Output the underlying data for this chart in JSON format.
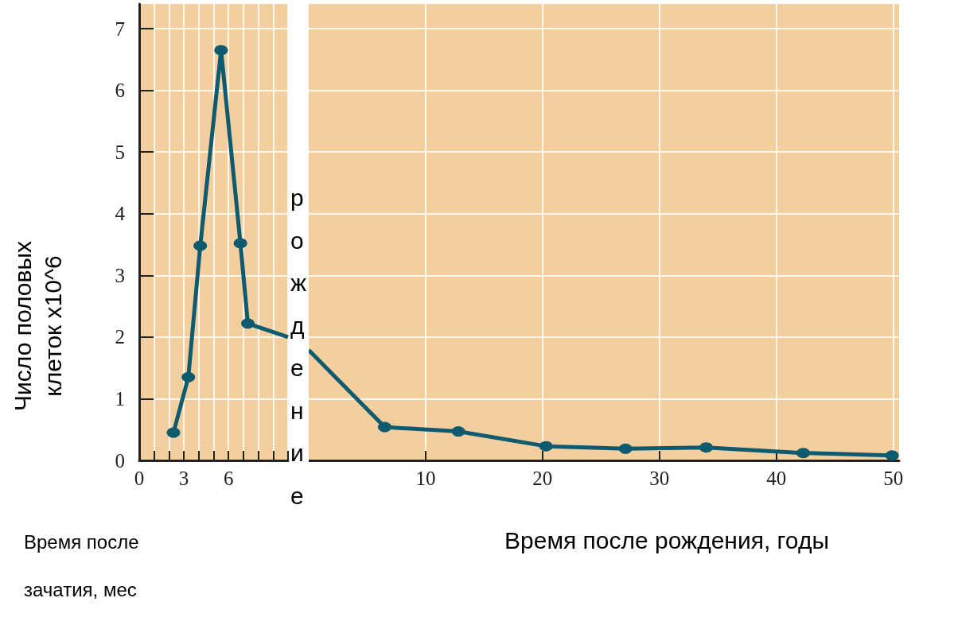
{
  "chart_data": [
    {
      "type": "line",
      "xlabel": "Время после зачатия, мес",
      "ylabel": "Число половых клеток x10^6",
      "annotations": [
        "рождение"
      ],
      "xlim": [
        0,
        10
      ],
      "xticks": [
        0,
        {
          "value": 1,
          "label": null
        },
        {
          "value": 2,
          "label": null
        },
        3,
        {
          "value": 4,
          "label": null
        },
        {
          "value": 5,
          "label": null
        },
        6,
        {
          "value": 7,
          "label": null
        },
        {
          "value": 8,
          "label": null
        },
        {
          "value": 9,
          "label": null
        },
        {
          "value": 10,
          "label": null
        }
      ],
      "ylim": [
        0,
        7.4
      ],
      "yticks": [
        0,
        1,
        2,
        3,
        4,
        5,
        6,
        7
      ],
      "grid": true,
      "marker": "circle",
      "series": [
        {
          "color": "#0e5a6e",
          "x": [
            2.3,
            3.3,
            4.1,
            5.5,
            6.8,
            7.3
          ],
          "values": [
            0.45,
            1.35,
            3.48,
            6.65,
            3.52,
            2.22
          ]
        },
        {
          "color": "#0e5a6e",
          "marker": "none",
          "x": [
            7.3,
            10
          ],
          "values": [
            2.22,
            2.0
          ]
        }
      ]
    },
    {
      "type": "line",
      "xlabel": "Время после рождения, годы",
      "xlim": [
        0,
        50.5
      ],
      "xticks": [
        10,
        20,
        30,
        40,
        50
      ],
      "ylim": [
        0,
        7.4
      ],
      "yticks": [
        0,
        1,
        2,
        3,
        4,
        5,
        6,
        7
      ],
      "grid": true,
      "tick_labels": "x",
      "marker": "circle",
      "series": [
        {
          "color": "#0e5a6e",
          "x": [
            0,
            6.5,
            12.8,
            20.3,
            27.1,
            34.0,
            42.3,
            49.9
          ],
          "values": [
            1.79,
            0.54,
            0.47,
            0.23,
            0.19,
            0.21,
            0.12,
            0.08
          ]
        }
      ]
    }
  ]
}
